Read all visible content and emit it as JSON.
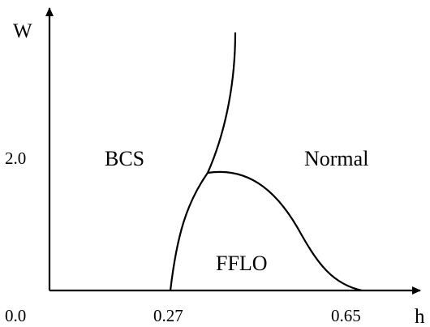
{
  "axes": {
    "y_label": "W",
    "x_label": "h",
    "y_ticks": [
      "2.0"
    ],
    "origin_label": "0.0",
    "x_ticks": [
      "0.27",
      "0.65"
    ]
  },
  "regions": {
    "bcs": "BCS",
    "normal": "Normal",
    "fflo": "FFLO"
  },
  "colors": {
    "line": "#000000",
    "background": "#ffffff"
  }
}
